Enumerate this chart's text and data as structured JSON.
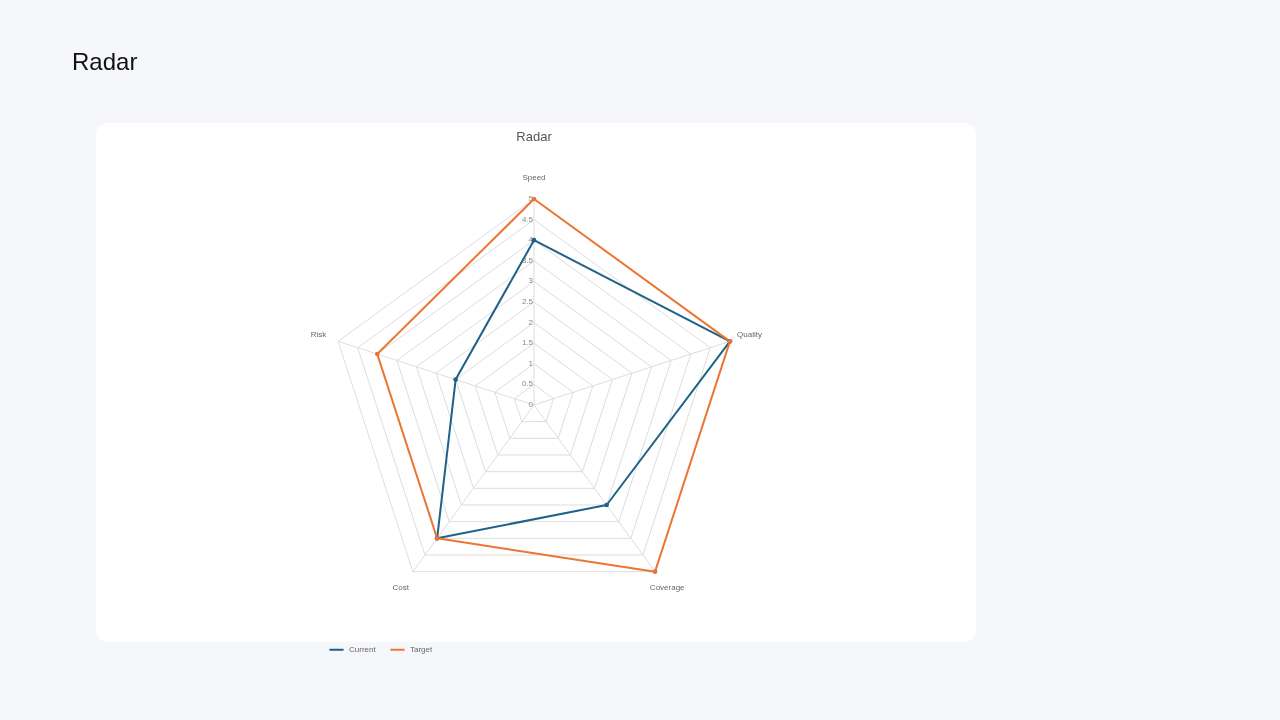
{
  "chart_data": {
    "type": "radar",
    "title": "Radar",
    "categories": [
      "Speed",
      "Quality",
      "Coverage",
      "Cost",
      "Risk"
    ],
    "series": [
      {
        "name": "Current",
        "color": "#1f6187",
        "values": [
          4,
          5,
          3,
          4,
          2
        ]
      },
      {
        "name": "Target",
        "color": "#ec7535",
        "values": [
          5,
          5,
          5,
          4,
          4
        ]
      }
    ],
    "ylim": [
      0,
      5
    ],
    "yticks": [
      0,
      0.5,
      1,
      1.5,
      2,
      2.5,
      3,
      3.5,
      4,
      4.5,
      5
    ],
    "grid": true,
    "legend": "bottom",
    "marker": "circle",
    "line_style": "solid"
  }
}
